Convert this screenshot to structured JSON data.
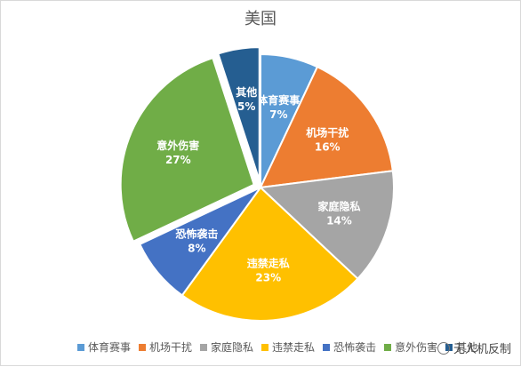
{
  "chart_data": {
    "type": "pie",
    "title": "美国",
    "categories": [
      "体育赛事",
      "机场干扰",
      "家庭隐私",
      "违禁走私",
      "恐怖袭击",
      "意外伤害",
      "其他"
    ],
    "values": [
      7,
      16,
      14,
      23,
      8,
      27,
      5
    ],
    "value_labels": [
      "7%",
      "16%",
      "14%",
      "23%",
      "8%",
      "27%",
      "5%"
    ],
    "colors": [
      "#5b9bd5",
      "#ed7d31",
      "#a5a5a5",
      "#ffc000",
      "#4472c4",
      "#70ad47",
      "#255e91"
    ],
    "exploded": [
      "意外伤害",
      "其他"
    ],
    "legend_position": "bottom"
  },
  "watermark": {
    "text": "无人机反制",
    "icon": "wechat-icon"
  }
}
